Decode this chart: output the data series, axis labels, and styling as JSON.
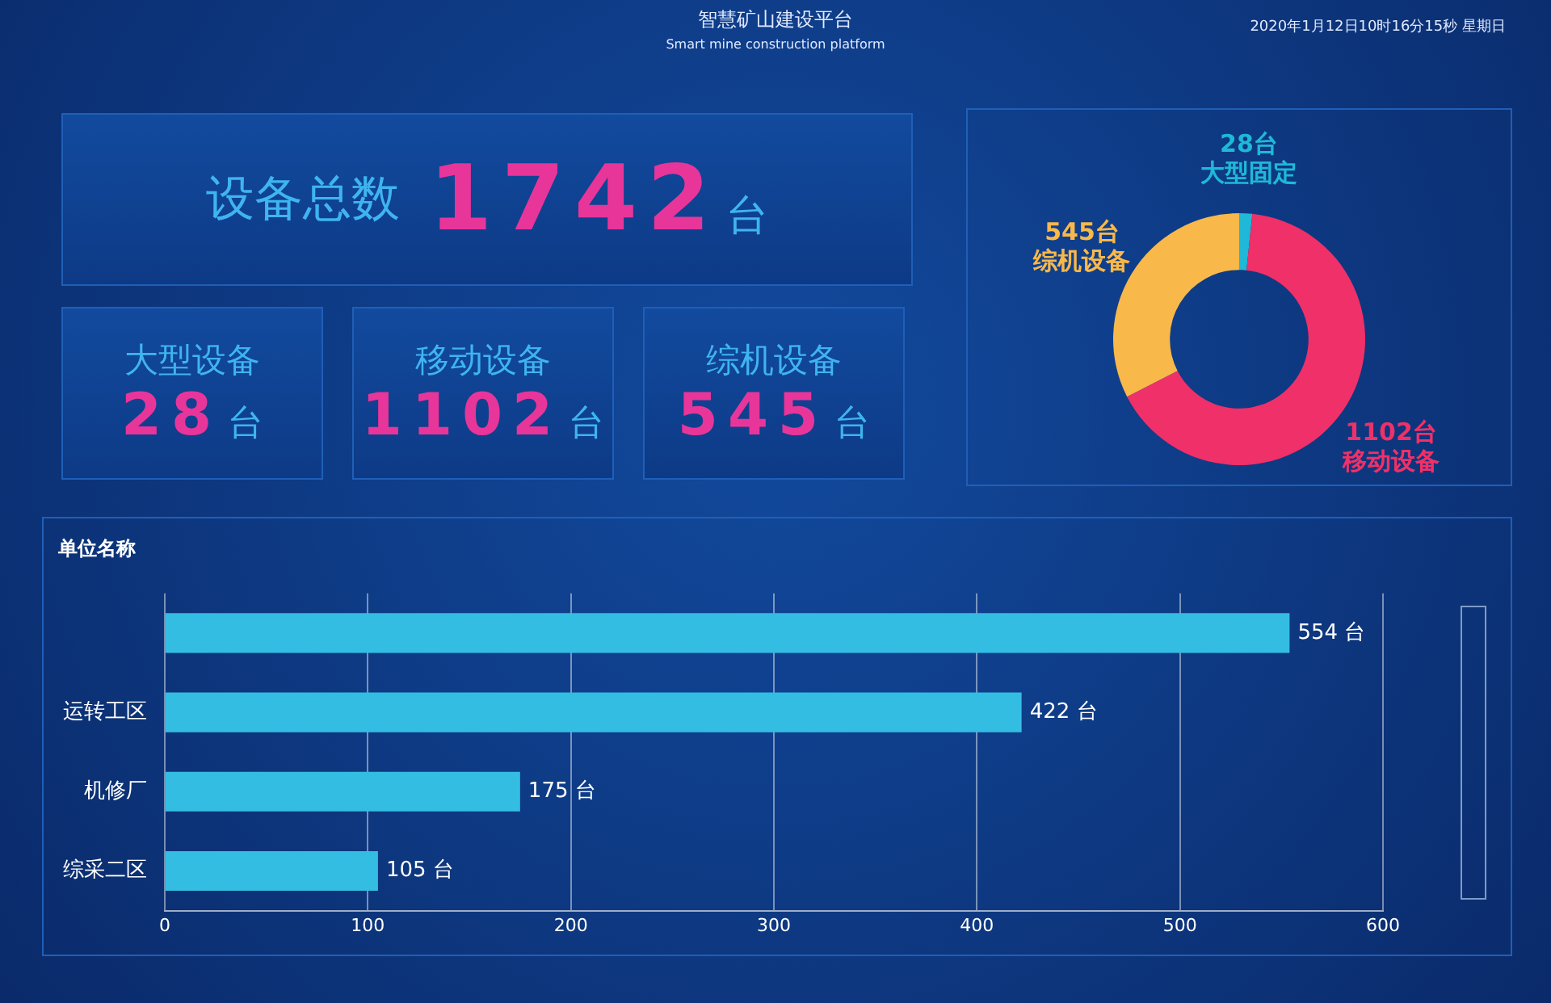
{
  "chart_data": [
    {
      "type": "other",
      "title": "智慧矿山建设平台",
      "subtitle": "Smart mine construction platform",
      "annotations": [
        "2020年1月12日10时16分15秒 星期日",
        "设备总数",
        "1742",
        "台",
        "大型设备",
        "28",
        "台",
        "移动设备",
        "1102",
        "台",
        "综机设备",
        "545",
        "台"
      ]
    },
    {
      "type": "donut",
      "categories": [
        "大型固定",
        "移动设备",
        "综机设备"
      ],
      "values": [
        28,
        1102,
        545
      ],
      "colors": [
        "#1fb8d8",
        "#f03068",
        "#f8b84a"
      ],
      "value_labels": [
        "28台",
        "1102台",
        "545台"
      ],
      "legend": false
    },
    {
      "type": "bar",
      "orientation": "horizontal",
      "ylabel": "单位名称",
      "categories": [
        null,
        "运转工区",
        "机修厂",
        "综采二区"
      ],
      "values": [
        554,
        422,
        175,
        105
      ],
      "color": "#34bde2",
      "value_labels": [
        "554 台",
        "422 台",
        "175 台",
        "105 台"
      ],
      "xlim": [
        0,
        600
      ],
      "xticks": [
        0,
        100,
        200,
        300,
        400,
        500,
        600
      ],
      "grid": "x",
      "legend": false
    }
  ]
}
